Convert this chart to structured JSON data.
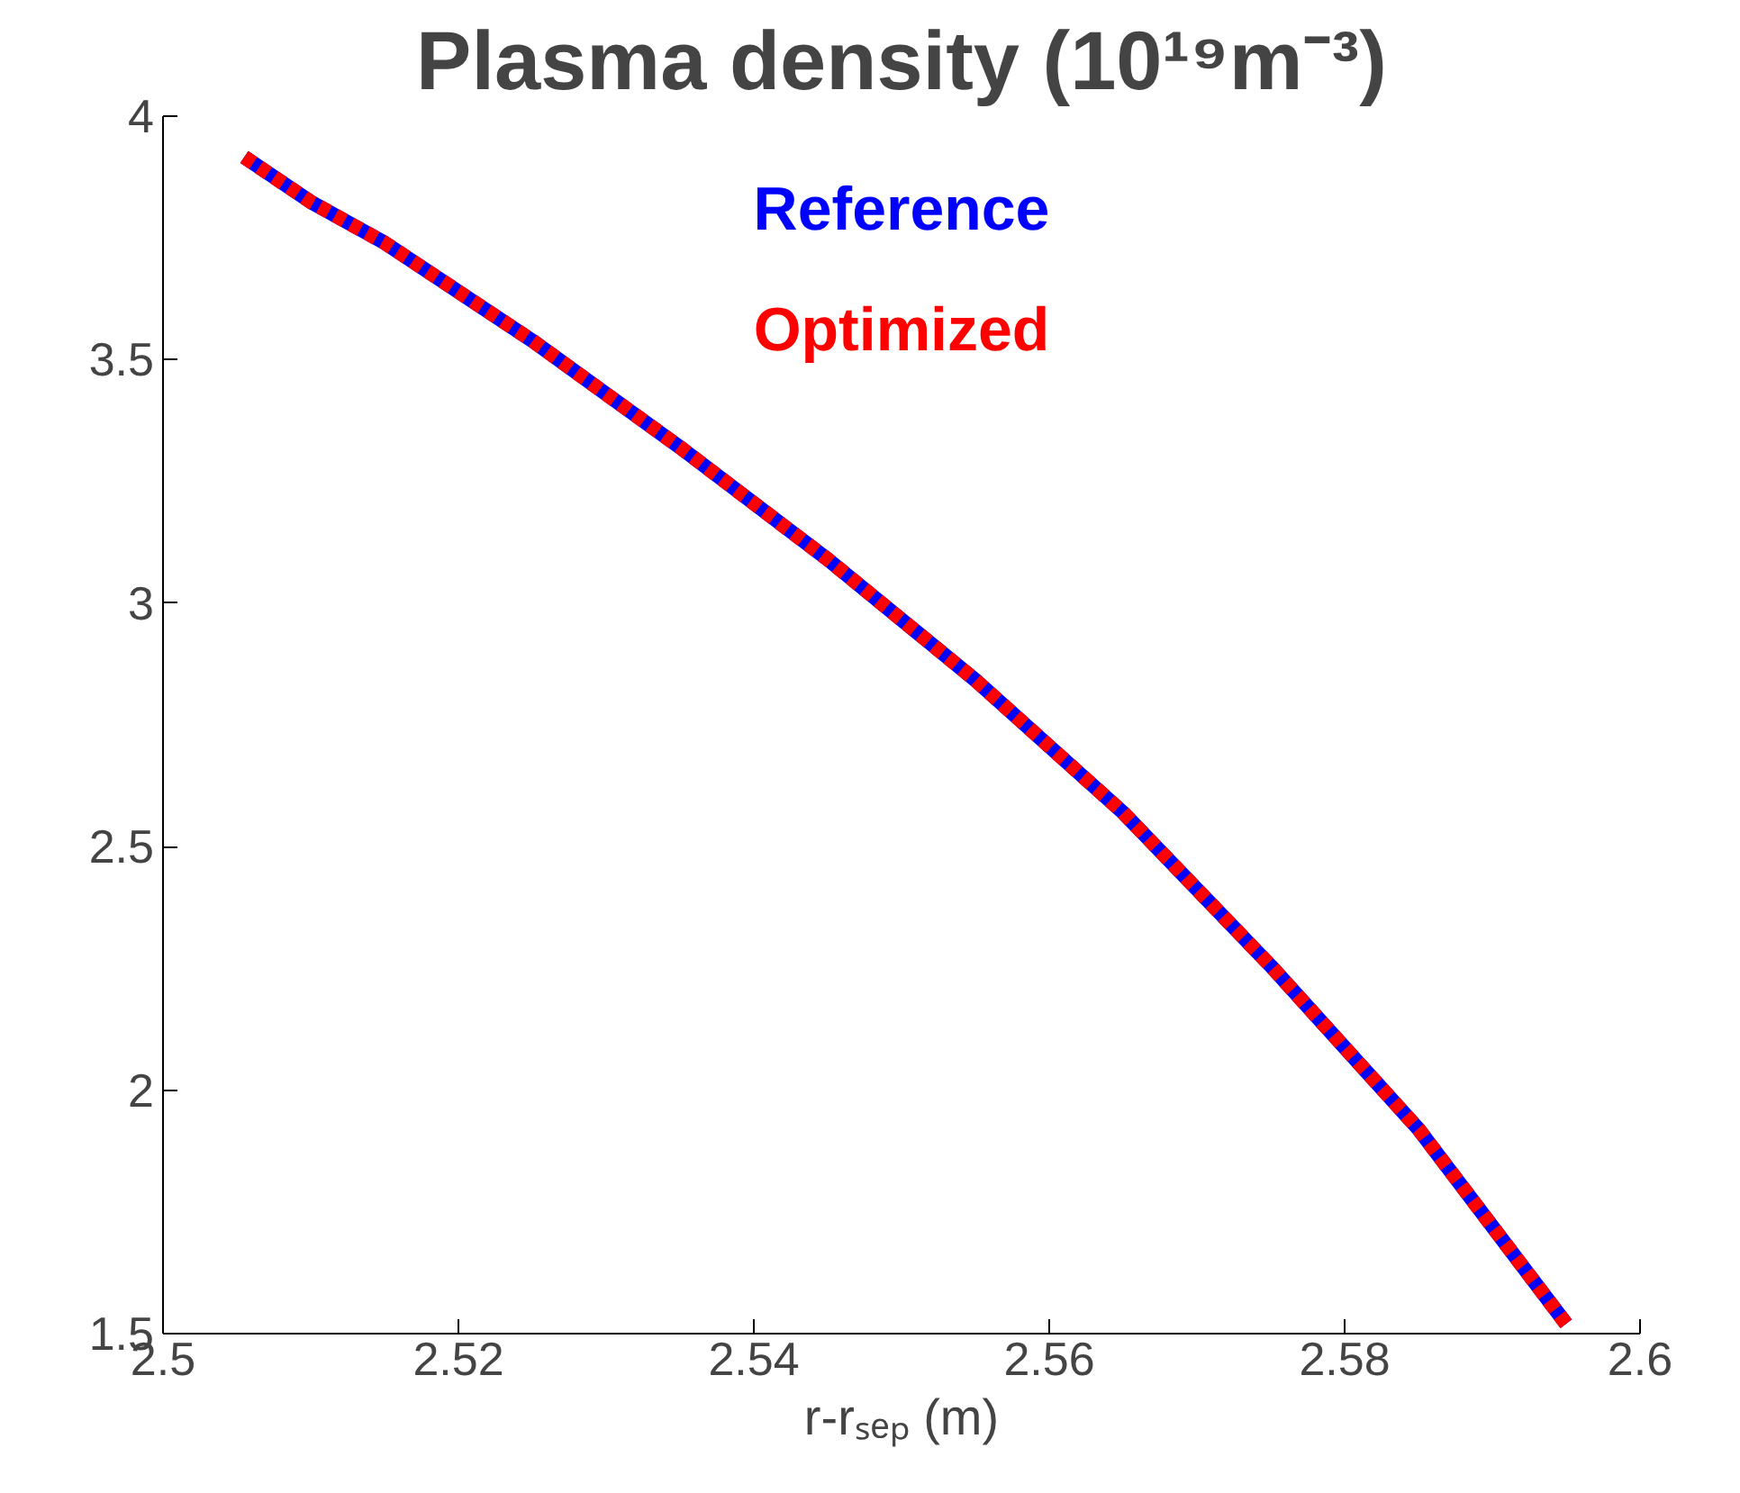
{
  "chart_data": {
    "type": "line",
    "title": "Plasma density (10¹⁹m⁻³)",
    "xlabel": "r-rₛₑₚ (m)",
    "x": [
      2.5055,
      2.51,
      2.515,
      2.525,
      2.535,
      2.545,
      2.555,
      2.565,
      2.575,
      2.585,
      2.595
    ],
    "series": [
      {
        "name": "Reference",
        "color": "#0000ff",
        "line_style": "solid",
        "values": [
          3.916,
          3.824,
          3.74,
          3.539,
          3.32,
          3.09,
          2.842,
          2.57,
          2.255,
          1.92,
          1.52
        ]
      },
      {
        "name": "Optimized",
        "color": "#ff0000",
        "line_style": "dashed",
        "values": [
          3.916,
          3.824,
          3.74,
          3.539,
          3.32,
          3.09,
          2.842,
          2.57,
          2.255,
          1.92,
          1.52
        ]
      }
    ],
    "xlim": [
      2.5,
      2.6
    ],
    "ylim": [
      1.5,
      4
    ],
    "xticks": [
      2.5,
      2.52,
      2.54,
      2.56,
      2.58,
      2.6
    ],
    "yticks": [
      1.5,
      2,
      2.5,
      3,
      3.5,
      4
    ],
    "grid": false,
    "legend": "top"
  }
}
